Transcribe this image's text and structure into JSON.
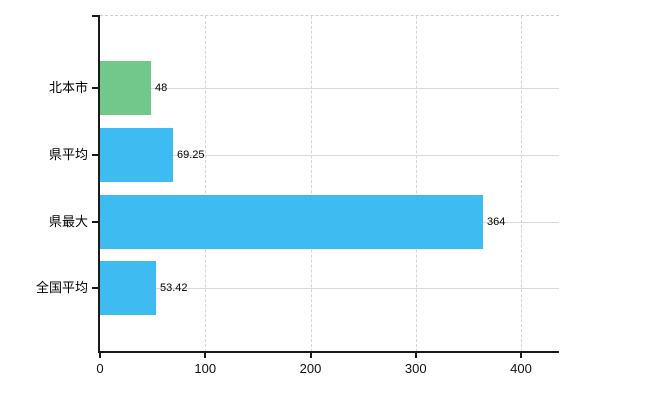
{
  "chart_data": {
    "type": "bar",
    "orientation": "horizontal",
    "title": "",
    "xlabel": "",
    "ylabel": "",
    "categories": [
      "北本市",
      "県平均",
      "県最大",
      "全国平均"
    ],
    "values": [
      48,
      69.25,
      364,
      53.42
    ],
    "value_labels": [
      "48",
      "69.25",
      "364",
      "53.42"
    ],
    "bar_colors": [
      "#72c88a",
      "#3ebbf0",
      "#3ebbf0",
      "#3ebbf0"
    ],
    "x_ticks": [
      0,
      100,
      200,
      300,
      400
    ],
    "x_tick_labels": [
      "0",
      "100",
      "200",
      "300",
      "400"
    ],
    "xlim": [
      0,
      437
    ],
    "grid": true,
    "legend_position": "none"
  },
  "colors": {
    "highlight_bar": "#72c88a",
    "default_bar": "#3ebbf0",
    "axis": "#1a1a1a",
    "grid_horizontal": "#d6dcd6",
    "grid_vertical": "#d9d3d6",
    "label_text": "#000000",
    "background": "#ffffff"
  }
}
